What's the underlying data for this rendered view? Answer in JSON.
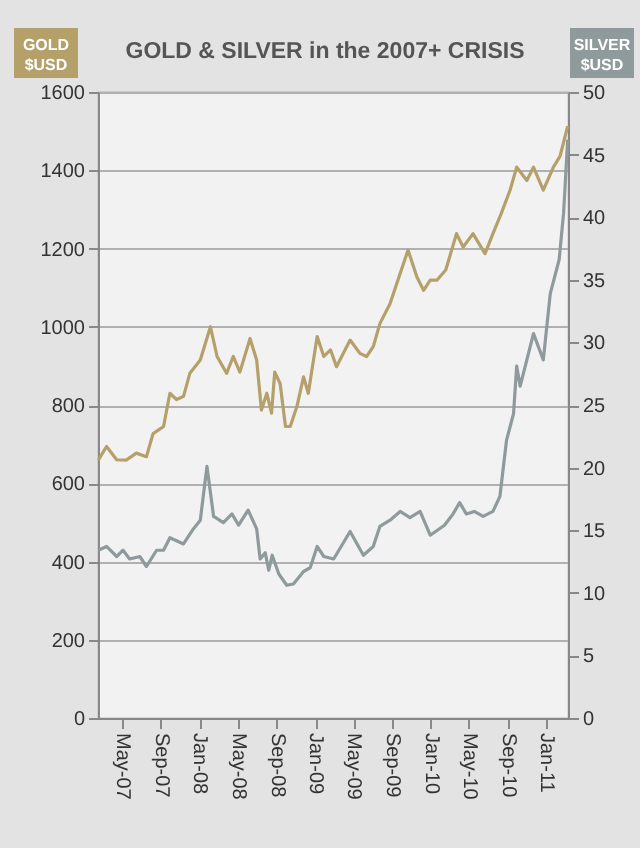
{
  "chart_data": {
    "type": "line",
    "title": "GOLD & SILVER in the 2007+  CRISIS",
    "ylabel": "GOLD $USD",
    "y2label": "SILVER $USD",
    "xlim": [
      "2007-02-15",
      "2011-03-10"
    ],
    "xticks": [
      {
        "value": "2007-05-01",
        "label": "May-07"
      },
      {
        "value": "2007-09-01",
        "label": "Sep-07"
      },
      {
        "value": "2008-01-01",
        "label": "Jan-08"
      },
      {
        "value": "2008-05-01",
        "label": "May-08"
      },
      {
        "value": "2008-09-01",
        "label": "Sep-08"
      },
      {
        "value": "2009-01-01",
        "label": "Jan-09"
      },
      {
        "value": "2009-05-01",
        "label": "May-09"
      },
      {
        "value": "2009-09-01",
        "label": "Sep-09"
      },
      {
        "value": "2010-01-01",
        "label": "Jan-10"
      },
      {
        "value": "2010-05-01",
        "label": "May-10"
      },
      {
        "value": "2010-09-01",
        "label": "Sep-10"
      },
      {
        "value": "2011-01-01",
        "label": "Jan-11"
      }
    ],
    "ylim": [
      0,
      1600
    ],
    "yticks": [
      0,
      200,
      400,
      600,
      800,
      1000,
      1200,
      1400,
      1600
    ],
    "y2lim": [
      0,
      50
    ],
    "y2ticks": [
      0,
      5,
      10,
      15,
      20,
      25,
      30,
      35,
      40,
      45,
      50
    ],
    "grid": "y",
    "line_style": "solid",
    "marker": "none",
    "series": [
      {
        "color": "#b5a06a",
        "x": [
          "2007-02-16",
          "2007-03-14",
          "2007-04-15",
          "2007-05-15",
          "2007-06-16",
          "2007-07-18",
          "2007-08-08",
          "2007-09-10",
          "2007-09-30",
          "2007-10-21",
          "2007-11-12",
          "2007-12-02",
          "2008-01-04",
          "2008-02-05",
          "2008-02-26",
          "2008-03-27",
          "2008-04-17",
          "2008-05-08",
          "2008-06-09",
          "2008-06-30",
          "2008-07-15",
          "2008-08-01",
          "2008-08-16",
          "2008-08-26",
          "2008-09-12",
          "2008-09-29",
          "2008-10-14",
          "2008-11-04",
          "2008-11-25",
          "2008-12-10",
          "2009-01-07",
          "2009-01-28",
          "2009-02-18",
          "2009-03-09",
          "2009-04-21",
          "2009-05-22",
          "2009-06-12",
          "2009-07-03",
          "2009-07-24",
          "2009-08-25",
          "2009-09-26",
          "2009-10-21",
          "2009-11-18",
          "2009-12-09",
          "2009-12-30",
          "2010-01-20",
          "2010-02-17",
          "2010-03-23",
          "2010-04-13",
          "2010-05-14",
          "2010-06-21",
          "2010-07-16",
          "2010-08-11",
          "2010-09-08",
          "2010-09-29",
          "2010-10-31",
          "2010-11-21",
          "2010-12-22",
          "2011-01-23",
          "2011-02-13",
          "2011-03-09"
        ],
        "values": [
          659,
          694,
          660,
          659,
          677,
          668,
          727,
          745,
          830,
          814,
          822,
          881,
          915,
          1000,
          924,
          881,
          924,
          884,
          970,
          915,
          787,
          830,
          779,
          884,
          855,
          745,
          745,
          796,
          872,
          830,
          975,
          924,
          941,
          898,
          966,
          932,
          924,
          949,
          1008,
          1059,
          1136,
          1196,
          1127,
          1093,
          1119,
          1119,
          1145,
          1238,
          1204,
          1238,
          1187,
          1238,
          1289,
          1349,
          1408,
          1374,
          1408,
          1349,
          1408,
          1436,
          1513
        ]
      },
      {
        "color": "#8e9a9b",
        "axis": "y2",
        "x": [
          "2007-02-16",
          "2007-03-14",
          "2007-04-15",
          "2007-05-05",
          "2007-05-26",
          "2007-06-27",
          "2007-07-18",
          "2007-08-19",
          "2007-09-10",
          "2007-09-30",
          "2007-11-12",
          "2007-12-13",
          "2008-01-04",
          "2008-01-25",
          "2008-02-15",
          "2008-03-17",
          "2008-04-13",
          "2008-05-04",
          "2008-06-03",
          "2008-06-30",
          "2008-07-11",
          "2008-07-27",
          "2008-08-07",
          "2008-08-18",
          "2008-09-08",
          "2008-10-03",
          "2008-10-24",
          "2008-11-25",
          "2008-12-16",
          "2009-01-07",
          "2009-01-28",
          "2009-02-28",
          "2009-04-21",
          "2009-06-02",
          "2009-07-03",
          "2009-07-24",
          "2009-08-25",
          "2009-09-26",
          "2009-10-27",
          "2009-11-28",
          "2009-12-30",
          "2010-02-13",
          "2010-03-12",
          "2010-04-02",
          "2010-04-23",
          "2010-05-18",
          "2010-06-15",
          "2010-07-16",
          "2010-08-07",
          "2010-08-28",
          "2010-09-19",
          "2010-09-29",
          "2010-10-10",
          "2010-10-31",
          "2010-11-21",
          "2010-12-22",
          "2011-01-13",
          "2011-02-10",
          "2011-02-24",
          "2011-03-09"
        ],
        "values": [
          13.4,
          13.7,
          12.9,
          13.4,
          12.7,
          12.9,
          12.1,
          13.4,
          13.4,
          14.4,
          13.9,
          15.1,
          15.8,
          20.1,
          16.1,
          15.6,
          16.3,
          15.4,
          16.6,
          15.1,
          12.7,
          13.2,
          11.8,
          13.0,
          11.5,
          10.6,
          10.7,
          11.7,
          12.0,
          13.7,
          12.9,
          12.7,
          14.9,
          13.0,
          13.7,
          15.3,
          15.8,
          16.5,
          16.0,
          16.5,
          14.6,
          15.4,
          16.3,
          17.2,
          16.3,
          16.5,
          16.1,
          16.5,
          17.7,
          22.2,
          24.3,
          28.1,
          26.5,
          28.6,
          30.7,
          28.6,
          33.9,
          36.6,
          40.3,
          46.2
        ]
      }
    ]
  }
}
